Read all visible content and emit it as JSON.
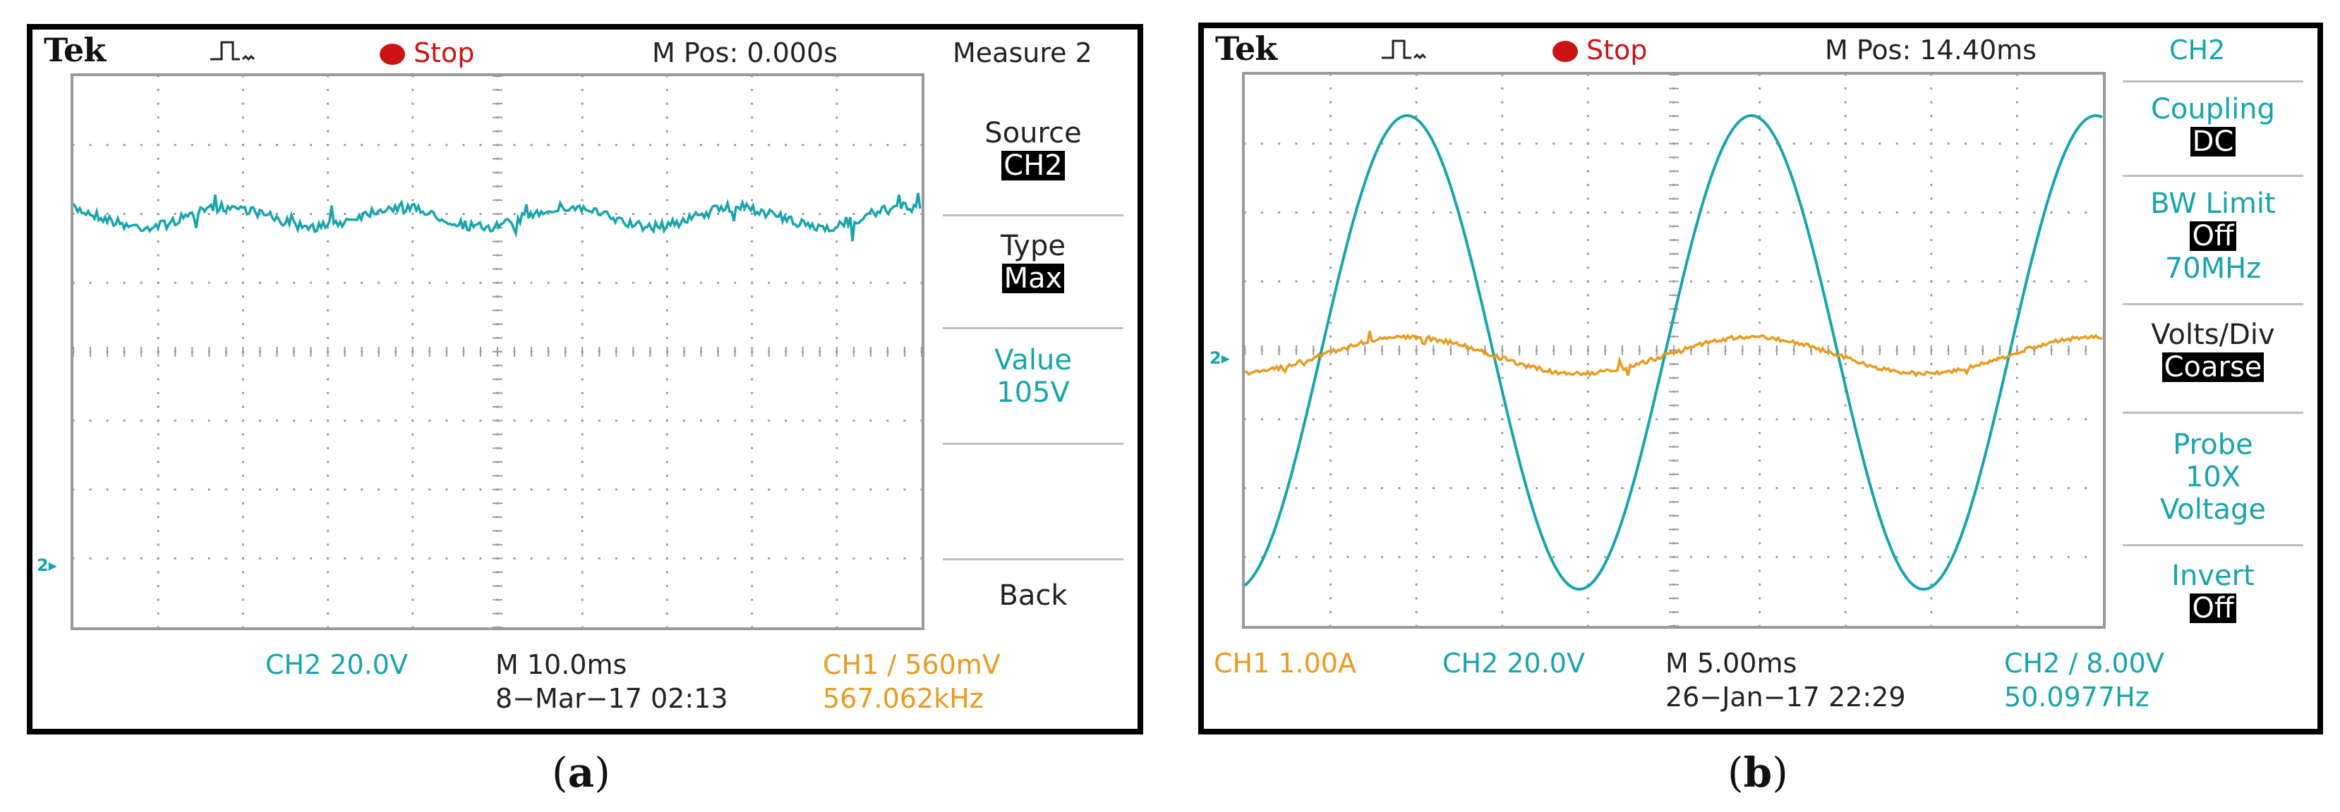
{
  "panels": [
    {
      "caption_letter": "a",
      "brand": "Tek",
      "status": "Stop",
      "mpos": "M Pos: 0.000s",
      "menu_title": "Measure 2",
      "menu": [
        {
          "label": "Source",
          "value": "CH2"
        },
        {
          "label": "Type",
          "value": "Max"
        },
        {
          "label": "Value",
          "value": "105V"
        },
        {
          "label": "Back"
        }
      ],
      "ch2_scale": "CH2  20.0V",
      "timebase": "M 10.0ms",
      "datetime": "8−Mar−17 02:13",
      "trigger": "CH1 ∕ 560mV",
      "frequency": "567.062kHz",
      "ground_marker": "2▸"
    },
    {
      "caption_letter": "b",
      "brand": "Tek",
      "status": "Stop",
      "mpos": "M Pos: 14.40ms",
      "menu_title": "CH2",
      "menu": [
        {
          "label": "Coupling",
          "value": "DC"
        },
        {
          "label": "BW Limit",
          "value": "Off",
          "extra": "70MHz"
        },
        {
          "label": "Volts/Div",
          "value": "Coarse"
        },
        {
          "label": "Probe",
          "line2": "10X",
          "line3": "Voltage"
        },
        {
          "label": "Invert",
          "value": "Off"
        }
      ],
      "ch1_scale": "CH1  1.00A",
      "ch2_scale": "CH2  20.0V",
      "timebase": "M 5.00ms",
      "datetime": "26−Jan−17 22:29",
      "trigger": "CH2 ∕ 8.00V",
      "frequency": "50.0977Hz",
      "ground_marker": "2▸"
    }
  ],
  "colors": {
    "ch1": "#e99b1f",
    "ch2": "#17a5ab",
    "stop": "#cc1414",
    "grid_dots": "#9a9a9a"
  },
  "icons": {
    "trigger_position": "down-arrow-icon",
    "acquisition": "pulse-icon",
    "run_state": "red-dot-icon"
  }
}
